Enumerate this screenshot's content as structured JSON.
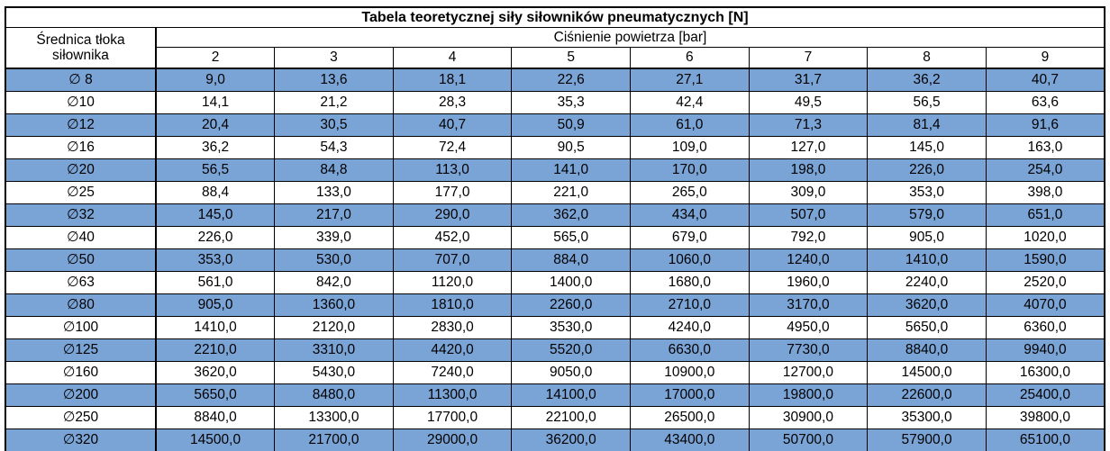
{
  "table": {
    "title": "Tabela teoretycznej siły siłowników pneumatycznych [N]",
    "diameter_header": "Średnica tłoka siłownika",
    "pressure_group_header": "Ciśnienie powietrza [bar]",
    "pressures": [
      "2",
      "3",
      "4",
      "5",
      "6",
      "7",
      "8",
      "9"
    ],
    "rows": [
      {
        "diameter": "∅ 8",
        "values": [
          "9,0",
          "13,6",
          "18,1",
          "22,6",
          "27,1",
          "31,7",
          "36,2",
          "40,7"
        ]
      },
      {
        "diameter": "∅10",
        "values": [
          "14,1",
          "21,2",
          "28,3",
          "35,3",
          "42,4",
          "49,5",
          "56,5",
          "63,6"
        ]
      },
      {
        "diameter": "∅12",
        "values": [
          "20,4",
          "30,5",
          "40,7",
          "50,9",
          "61,0",
          "71,3",
          "81,4",
          "91,6"
        ]
      },
      {
        "diameter": "∅16",
        "values": [
          "36,2",
          "54,3",
          "72,4",
          "90,5",
          "109,0",
          "127,0",
          "145,0",
          "163,0"
        ]
      },
      {
        "diameter": "∅20",
        "values": [
          "56,5",
          "84,8",
          "113,0",
          "141,0",
          "170,0",
          "198,0",
          "226,0",
          "254,0"
        ]
      },
      {
        "diameter": "∅25",
        "values": [
          "88,4",
          "133,0",
          "177,0",
          "221,0",
          "265,0",
          "309,0",
          "353,0",
          "398,0"
        ]
      },
      {
        "diameter": "∅32",
        "values": [
          "145,0",
          "217,0",
          "290,0",
          "362,0",
          "434,0",
          "507,0",
          "579,0",
          "651,0"
        ]
      },
      {
        "diameter": "∅40",
        "values": [
          "226,0",
          "339,0",
          "452,0",
          "565,0",
          "679,0",
          "792,0",
          "905,0",
          "1020,0"
        ]
      },
      {
        "diameter": "∅50",
        "values": [
          "353,0",
          "530,0",
          "707,0",
          "884,0",
          "1060,0",
          "1240,0",
          "1410,0",
          "1590,0"
        ]
      },
      {
        "diameter": "∅63",
        "values": [
          "561,0",
          "842,0",
          "1120,0",
          "1400,0",
          "1680,0",
          "1960,0",
          "2240,0",
          "2520,0"
        ]
      },
      {
        "diameter": "∅80",
        "values": [
          "905,0",
          "1360,0",
          "1810,0",
          "2260,0",
          "2710,0",
          "3170,0",
          "3620,0",
          "4070,0"
        ]
      },
      {
        "diameter": "∅100",
        "values": [
          "1410,0",
          "2120,0",
          "2830,0",
          "3530,0",
          "4240,0",
          "4950,0",
          "5650,0",
          "6360,0"
        ]
      },
      {
        "diameter": "∅125",
        "values": [
          "2210,0",
          "3310,0",
          "4420,0",
          "5520,0",
          "6630,0",
          "7730,0",
          "8840,0",
          "9940,0"
        ]
      },
      {
        "diameter": "∅160",
        "values": [
          "3620,0",
          "5430,0",
          "7240,0",
          "9050,0",
          "10900,0",
          "12700,0",
          "14500,0",
          "16300,0"
        ]
      },
      {
        "diameter": "∅200",
        "values": [
          "5650,0",
          "8480,0",
          "11300,0",
          "14100,0",
          "17000,0",
          "19800,0",
          "22600,0",
          "25400,0"
        ]
      },
      {
        "diameter": "∅250",
        "values": [
          "8840,0",
          "13300,0",
          "17700,0",
          "22100,0",
          "26500,0",
          "30900,0",
          "35300,0",
          "39800,0"
        ]
      },
      {
        "diameter": "∅320",
        "values": [
          "14500,0",
          "21700,0",
          "29000,0",
          "36200,0",
          "43400,0",
          "50700,0",
          "57900,0",
          "65100,0"
        ]
      }
    ],
    "colors": {
      "stripe_blue": "#7BA4D6",
      "stripe_white": "#FFFFFF",
      "border": "#000000",
      "text": "#000000"
    }
  },
  "chart_data": {
    "type": "table",
    "title": "Tabela teoretycznej siły siłowników pneumatycznych [N]",
    "row_header": "Średnica tłoka siłownika",
    "column_group_header": "Ciśnienie powietrza [bar]",
    "pressures_bar": [
      2,
      3,
      4,
      5,
      6,
      7,
      8,
      9
    ],
    "diameters_mm": [
      8,
      10,
      12,
      16,
      20,
      25,
      32,
      40,
      50,
      63,
      80,
      100,
      125,
      160,
      200,
      250,
      320
    ],
    "forces_N": [
      [
        9.0,
        13.6,
        18.1,
        22.6,
        27.1,
        31.7,
        36.2,
        40.7
      ],
      [
        14.1,
        21.2,
        28.3,
        35.3,
        42.4,
        49.5,
        56.5,
        63.6
      ],
      [
        20.4,
        30.5,
        40.7,
        50.9,
        61.0,
        71.3,
        81.4,
        91.6
      ],
      [
        36.2,
        54.3,
        72.4,
        90.5,
        109.0,
        127.0,
        145.0,
        163.0
      ],
      [
        56.5,
        84.8,
        113.0,
        141.0,
        170.0,
        198.0,
        226.0,
        254.0
      ],
      [
        88.4,
        133.0,
        177.0,
        221.0,
        265.0,
        309.0,
        353.0,
        398.0
      ],
      [
        145.0,
        217.0,
        290.0,
        362.0,
        434.0,
        507.0,
        579.0,
        651.0
      ],
      [
        226.0,
        339.0,
        452.0,
        565.0,
        679.0,
        792.0,
        905.0,
        1020.0
      ],
      [
        353.0,
        530.0,
        707.0,
        884.0,
        1060.0,
        1240.0,
        1410.0,
        1590.0
      ],
      [
        561.0,
        842.0,
        1120.0,
        1400.0,
        1680.0,
        1960.0,
        2240.0,
        2520.0
      ],
      [
        905.0,
        1360.0,
        1810.0,
        2260.0,
        2710.0,
        3170.0,
        3620.0,
        4070.0
      ],
      [
        1410.0,
        2120.0,
        2830.0,
        3530.0,
        4240.0,
        4950.0,
        5650.0,
        6360.0
      ],
      [
        2210.0,
        3310.0,
        4420.0,
        5520.0,
        6630.0,
        7730.0,
        8840.0,
        9940.0
      ],
      [
        3620.0,
        5430.0,
        7240.0,
        9050.0,
        10900.0,
        12700.0,
        14500.0,
        16300.0
      ],
      [
        5650.0,
        8480.0,
        11300.0,
        14100.0,
        17000.0,
        19800.0,
        22600.0,
        25400.0
      ],
      [
        8840.0,
        13300.0,
        17700.0,
        22100.0,
        26500.0,
        30900.0,
        35300.0,
        39800.0
      ],
      [
        14500.0,
        21700.0,
        29000.0,
        36200.0,
        43400.0,
        50700.0,
        57900.0,
        65100.0
      ]
    ],
    "row_striping": "alternating blue/white starting blue",
    "legend_position": "none",
    "grid": true
  }
}
